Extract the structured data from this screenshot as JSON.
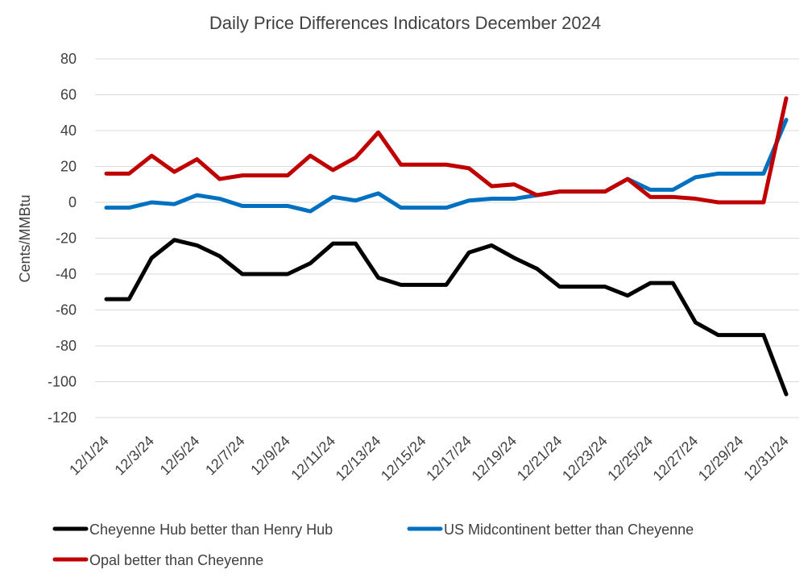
{
  "chart_data": {
    "type": "line",
    "title": "Daily Price Differences Indicators December 2024",
    "ylabel": "Cents/MMBtu",
    "xlabel": "",
    "ylim": [
      -120,
      80
    ],
    "ytick_step": 20,
    "grid": true,
    "legend_position": "bottom",
    "x": [
      "12/1/24",
      "12/2/24",
      "12/3/24",
      "12/4/24",
      "12/5/24",
      "12/6/24",
      "12/7/24",
      "12/8/24",
      "12/9/24",
      "12/10/24",
      "12/11/24",
      "12/12/24",
      "12/13/24",
      "12/14/24",
      "12/15/24",
      "12/16/24",
      "12/17/24",
      "12/18/24",
      "12/19/24",
      "12/20/24",
      "12/21/24",
      "12/22/24",
      "12/23/24",
      "12/24/24",
      "12/25/24",
      "12/26/24",
      "12/27/24",
      "12/28/24",
      "12/29/24",
      "12/30/24",
      "12/31/24"
    ],
    "x_tick_labels": [
      "12/1/24",
      "12/3/24",
      "12/5/24",
      "12/7/24",
      "12/9/24",
      "12/11/24",
      "12/13/24",
      "12/15/24",
      "12/17/24",
      "12/19/24",
      "12/21/24",
      "12/23/24",
      "12/25/24",
      "12/27/24",
      "12/29/24",
      "12/31/24"
    ],
    "series": [
      {
        "name": "Cheyenne Hub better than Henry Hub",
        "color": "#000000",
        "values": [
          -54,
          -54,
          -31,
          -21,
          -24,
          -30,
          -40,
          -40,
          -40,
          -34,
          -23,
          -23,
          -42,
          -46,
          -46,
          -46,
          -28,
          -24,
          -31,
          -37,
          -47,
          -47,
          -47,
          -52,
          -45,
          -45,
          -67,
          -74,
          -74,
          -74,
          -107
        ]
      },
      {
        "name": "US Midcontinent better than Cheyenne",
        "color": "#0070c0",
        "values": [
          -3,
          -3,
          0,
          -1,
          4,
          2,
          -2,
          -2,
          -2,
          -5,
          3,
          1,
          5,
          -3,
          -3,
          -3,
          1,
          2,
          2,
          4,
          6,
          6,
          6,
          13,
          7,
          7,
          14,
          16,
          16,
          16,
          46
        ]
      },
      {
        "name": "Opal better than Cheyenne",
        "color": "#c00000",
        "values": [
          16,
          16,
          26,
          17,
          24,
          13,
          15,
          15,
          15,
          26,
          18,
          25,
          39,
          21,
          21,
          21,
          19,
          9,
          10,
          4,
          6,
          6,
          6,
          13,
          3,
          3,
          2,
          0,
          0,
          0,
          58
        ]
      }
    ]
  }
}
